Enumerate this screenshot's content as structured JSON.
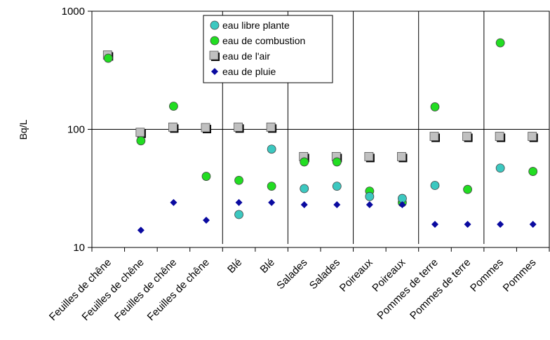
{
  "chart_data": {
    "type": "scatter",
    "ylabel": "Bq/L",
    "yscale": "log",
    "ylim": [
      10,
      1000
    ],
    "ytick_labels": [
      "10",
      "100",
      "1000"
    ],
    "ytick_values": [
      10,
      100,
      1000
    ],
    "categories": [
      "Feuilles de chêne",
      "Feuilles de chêne",
      "Feuilles de chêne",
      "Feuilles de chêne",
      "Blé",
      "Blé",
      "Salades",
      "Salades",
      "Poireaux",
      "Poireaux",
      "Pommes de terre",
      "Pommes de terre",
      "Pommes",
      "Pommes"
    ],
    "group_separators_after": [
      3,
      5,
      7,
      9,
      11
    ],
    "grid": "horizontal line at 100",
    "legend_position": "top-center",
    "series": [
      {
        "name": "eau libre plante",
        "marker": "circle",
        "color": "#3cc8c0",
        "values": [
          null,
          null,
          null,
          null,
          19,
          68,
          31.5,
          33,
          27,
          26,
          33.5,
          null,
          47,
          null
        ]
      },
      {
        "name": "eau de combustion",
        "marker": "circle",
        "color": "#22dd22",
        "values": [
          400,
          80,
          157,
          40,
          37,
          33,
          53,
          53,
          30,
          24,
          155,
          31,
          540,
          44
        ]
      },
      {
        "name": "eau de l'air",
        "marker": "square",
        "color": "#c0c0c0",
        "values": [
          420,
          93,
          103,
          102,
          103,
          103,
          58,
          58,
          58,
          58,
          86,
          86,
          86,
          86
        ]
      },
      {
        "name": "eau de pluie",
        "marker": "diamond",
        "color": "#0a0aa0",
        "values": [
          null,
          14,
          24,
          17,
          24,
          24,
          23,
          23,
          23,
          23,
          15.7,
          15.7,
          15.7,
          15.7
        ]
      }
    ]
  }
}
